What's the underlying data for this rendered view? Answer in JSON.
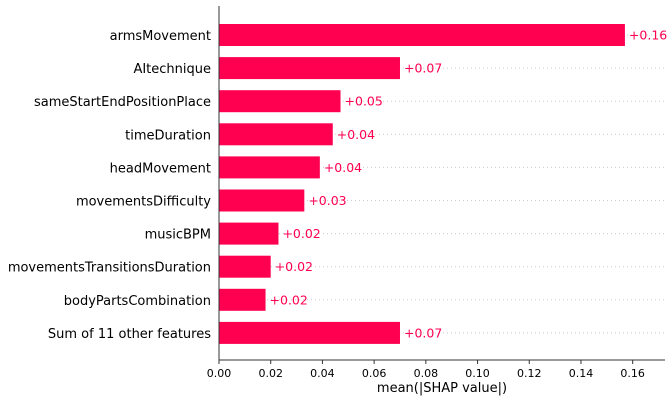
{
  "chart_data": {
    "type": "bar",
    "orientation": "horizontal",
    "categories": [
      "armsMovement",
      "AItechnique",
      "sameStartEndPositionPlace",
      "timeDuration",
      "headMovement",
      "movementsDifficulty",
      "musicBPM",
      "movementsTransitionsDuration",
      "bodyPartsCombination",
      "Sum of 11 other features"
    ],
    "values": [
      0.157,
      0.07,
      0.047,
      0.044,
      0.039,
      0.033,
      0.023,
      0.02,
      0.018,
      0.07
    ],
    "value_labels": [
      "+0.16",
      "+0.07",
      "+0.05",
      "+0.04",
      "+0.04",
      "+0.03",
      "+0.02",
      "+0.02",
      "+0.02",
      "+0.07"
    ],
    "xlabel": "mean(|SHAP value|)",
    "ylabel": "",
    "title": "",
    "xlim": [
      0,
      0.1725
    ],
    "xticks": [
      0.0,
      0.02,
      0.04,
      0.06,
      0.08,
      0.1,
      0.12,
      0.14,
      0.16
    ],
    "xtick_labels": [
      "0.00",
      "0.02",
      "0.04",
      "0.06",
      "0.08",
      "0.10",
      "0.12",
      "0.14",
      "0.16"
    ],
    "grid": "horizontal dotted row guides",
    "legend": "none",
    "colors": {
      "bar": "#ff0051",
      "value_label": "#ff0051",
      "axis": "#333333",
      "text": "#000000",
      "guide": "#cccccc"
    }
  }
}
